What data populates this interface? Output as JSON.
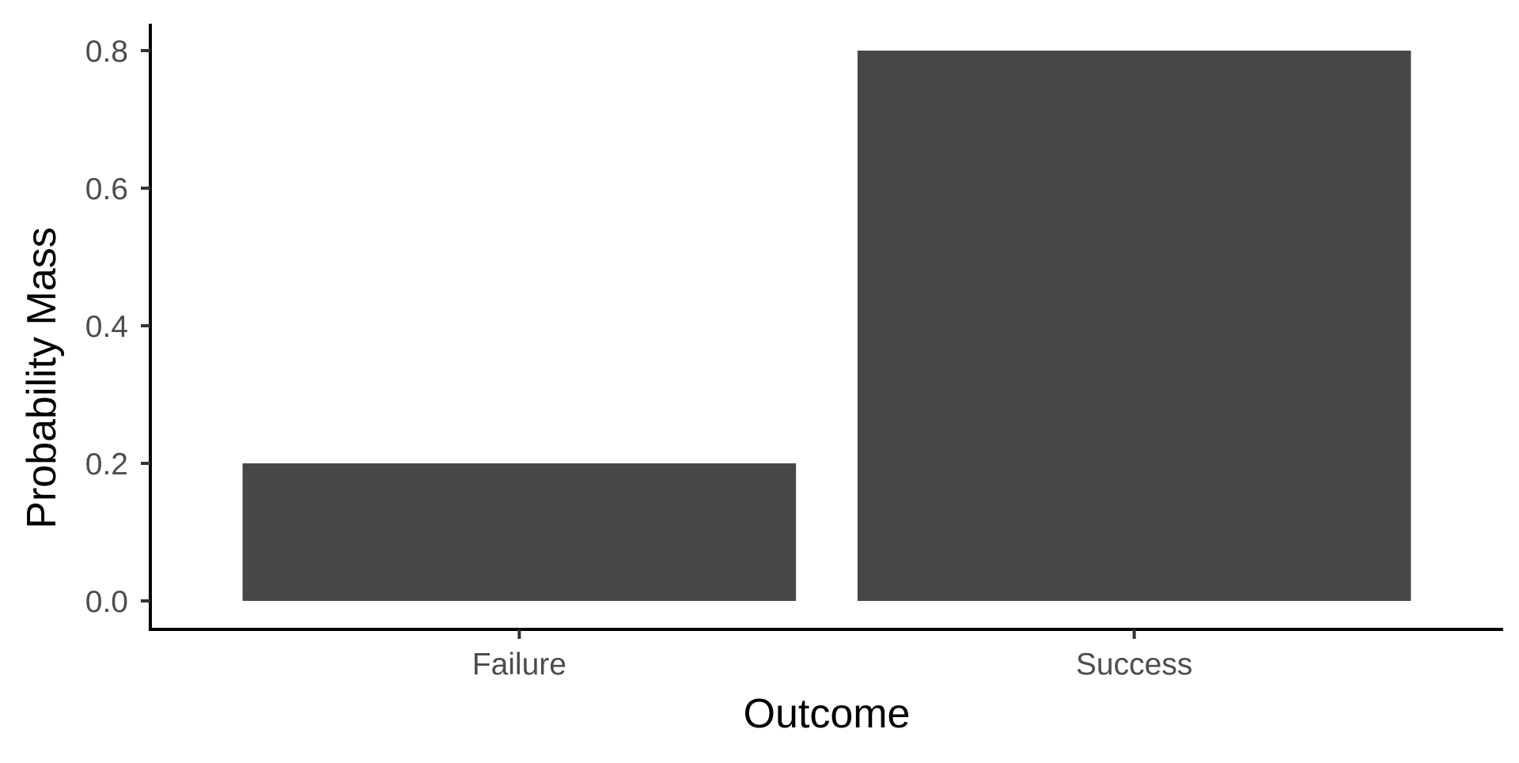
{
  "chart_data": {
    "type": "bar",
    "title": "",
    "xlabel": "Outcome",
    "ylabel": "Probability Mass",
    "categories": [
      "Failure",
      "Success"
    ],
    "values": [
      0.2,
      0.8
    ],
    "ylim": [
      0,
      0.8
    ],
    "yticks": [
      0.0,
      0.2,
      0.4,
      0.6,
      0.8
    ],
    "ytick_labels": [
      "0.0",
      "0.2",
      "0.4",
      "0.6",
      "0.8"
    ],
    "grid": false,
    "legend": "none",
    "bar_color": "#474747",
    "axis_color": "#000000"
  }
}
